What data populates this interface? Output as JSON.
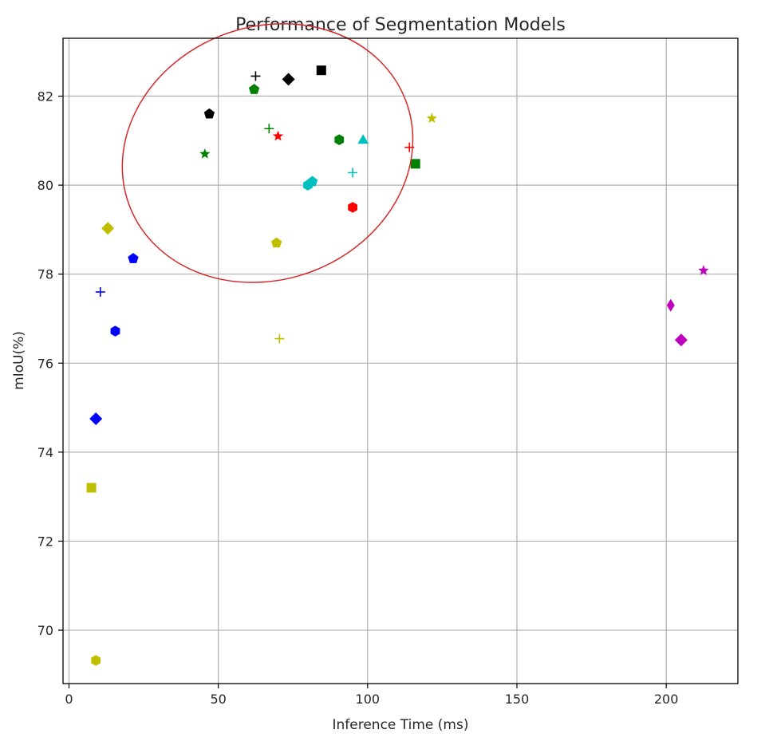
{
  "chart_data": {
    "type": "scatter",
    "title": "Performance of Segmentation Models",
    "xlabel": "Inference Time (ms)",
    "ylabel": "mIoU(%)",
    "xlim": [
      -2,
      224
    ],
    "ylim": [
      68.8,
      83.3
    ],
    "xticks": [
      0,
      50,
      100,
      150,
      200
    ],
    "yticks": [
      70,
      72,
      74,
      76,
      78,
      80,
      82
    ],
    "grid": true,
    "points": [
      {
        "x": 62.5,
        "y": 82.45,
        "marker": "plus",
        "color": "#000000"
      },
      {
        "x": 73.5,
        "y": 82.38,
        "marker": "diamond",
        "color": "#000000"
      },
      {
        "x": 84.5,
        "y": 82.58,
        "marker": "square",
        "color": "#000000"
      },
      {
        "x": 62.0,
        "y": 82.15,
        "marker": "pentagon",
        "color": "#008000"
      },
      {
        "x": 47.0,
        "y": 81.6,
        "marker": "pentagon",
        "color": "#000000"
      },
      {
        "x": 67.0,
        "y": 81.27,
        "marker": "plus",
        "color": "#008000"
      },
      {
        "x": 70.0,
        "y": 81.1,
        "marker": "star",
        "color": "#ff0000"
      },
      {
        "x": 90.5,
        "y": 81.02,
        "marker": "hexagon",
        "color": "#008000"
      },
      {
        "x": 98.5,
        "y": 81.02,
        "marker": "triangle",
        "color": "#00bfbf"
      },
      {
        "x": 121.5,
        "y": 81.5,
        "marker": "star",
        "color": "#bfbf00"
      },
      {
        "x": 114.0,
        "y": 80.85,
        "marker": "plus",
        "color": "#ff0000"
      },
      {
        "x": 45.5,
        "y": 80.7,
        "marker": "star",
        "color": "#008000"
      },
      {
        "x": 116.0,
        "y": 80.48,
        "marker": "square",
        "color": "#008000"
      },
      {
        "x": 95.0,
        "y": 80.28,
        "marker": "plus",
        "color": "#00bfbf"
      },
      {
        "x": 81.5,
        "y": 80.08,
        "marker": "pentagon",
        "color": "#00bfbf"
      },
      {
        "x": 80.0,
        "y": 80.0,
        "marker": "hexagon",
        "color": "#00bfbf"
      },
      {
        "x": 95.0,
        "y": 79.5,
        "marker": "hexagon",
        "color": "#ff0000"
      },
      {
        "x": 13.0,
        "y": 79.03,
        "marker": "diamond",
        "color": "#bfbf00"
      },
      {
        "x": 69.5,
        "y": 78.7,
        "marker": "pentagon",
        "color": "#bfbf00"
      },
      {
        "x": 21.5,
        "y": 78.35,
        "marker": "pentagon",
        "color": "#0000ff"
      },
      {
        "x": 212.5,
        "y": 78.08,
        "marker": "star",
        "color": "#bf00bf"
      },
      {
        "x": 10.5,
        "y": 77.6,
        "marker": "plus",
        "color": "#0000ff"
      },
      {
        "x": 201.5,
        "y": 77.3,
        "marker": "thin_diamond",
        "color": "#bf00bf"
      },
      {
        "x": 15.5,
        "y": 76.72,
        "marker": "hexagon",
        "color": "#0000ff"
      },
      {
        "x": 70.5,
        "y": 76.55,
        "marker": "plus",
        "color": "#bfbf00"
      },
      {
        "x": 205.0,
        "y": 76.52,
        "marker": "diamond",
        "color": "#bf00bf"
      },
      {
        "x": 9.0,
        "y": 74.75,
        "marker": "diamond",
        "color": "#0000ff"
      },
      {
        "x": 7.5,
        "y": 73.2,
        "marker": "square",
        "color": "#bfbf00"
      },
      {
        "x": 9.0,
        "y": 69.32,
        "marker": "hexagon",
        "color": "#bfbf00"
      }
    ],
    "annotation": {
      "shape": "ellipse",
      "color": "#d62728",
      "center": [
        66.5,
        80.72
      ],
      "rx": 49.5,
      "ry": 2.84,
      "rotation_deg": -21
    }
  }
}
